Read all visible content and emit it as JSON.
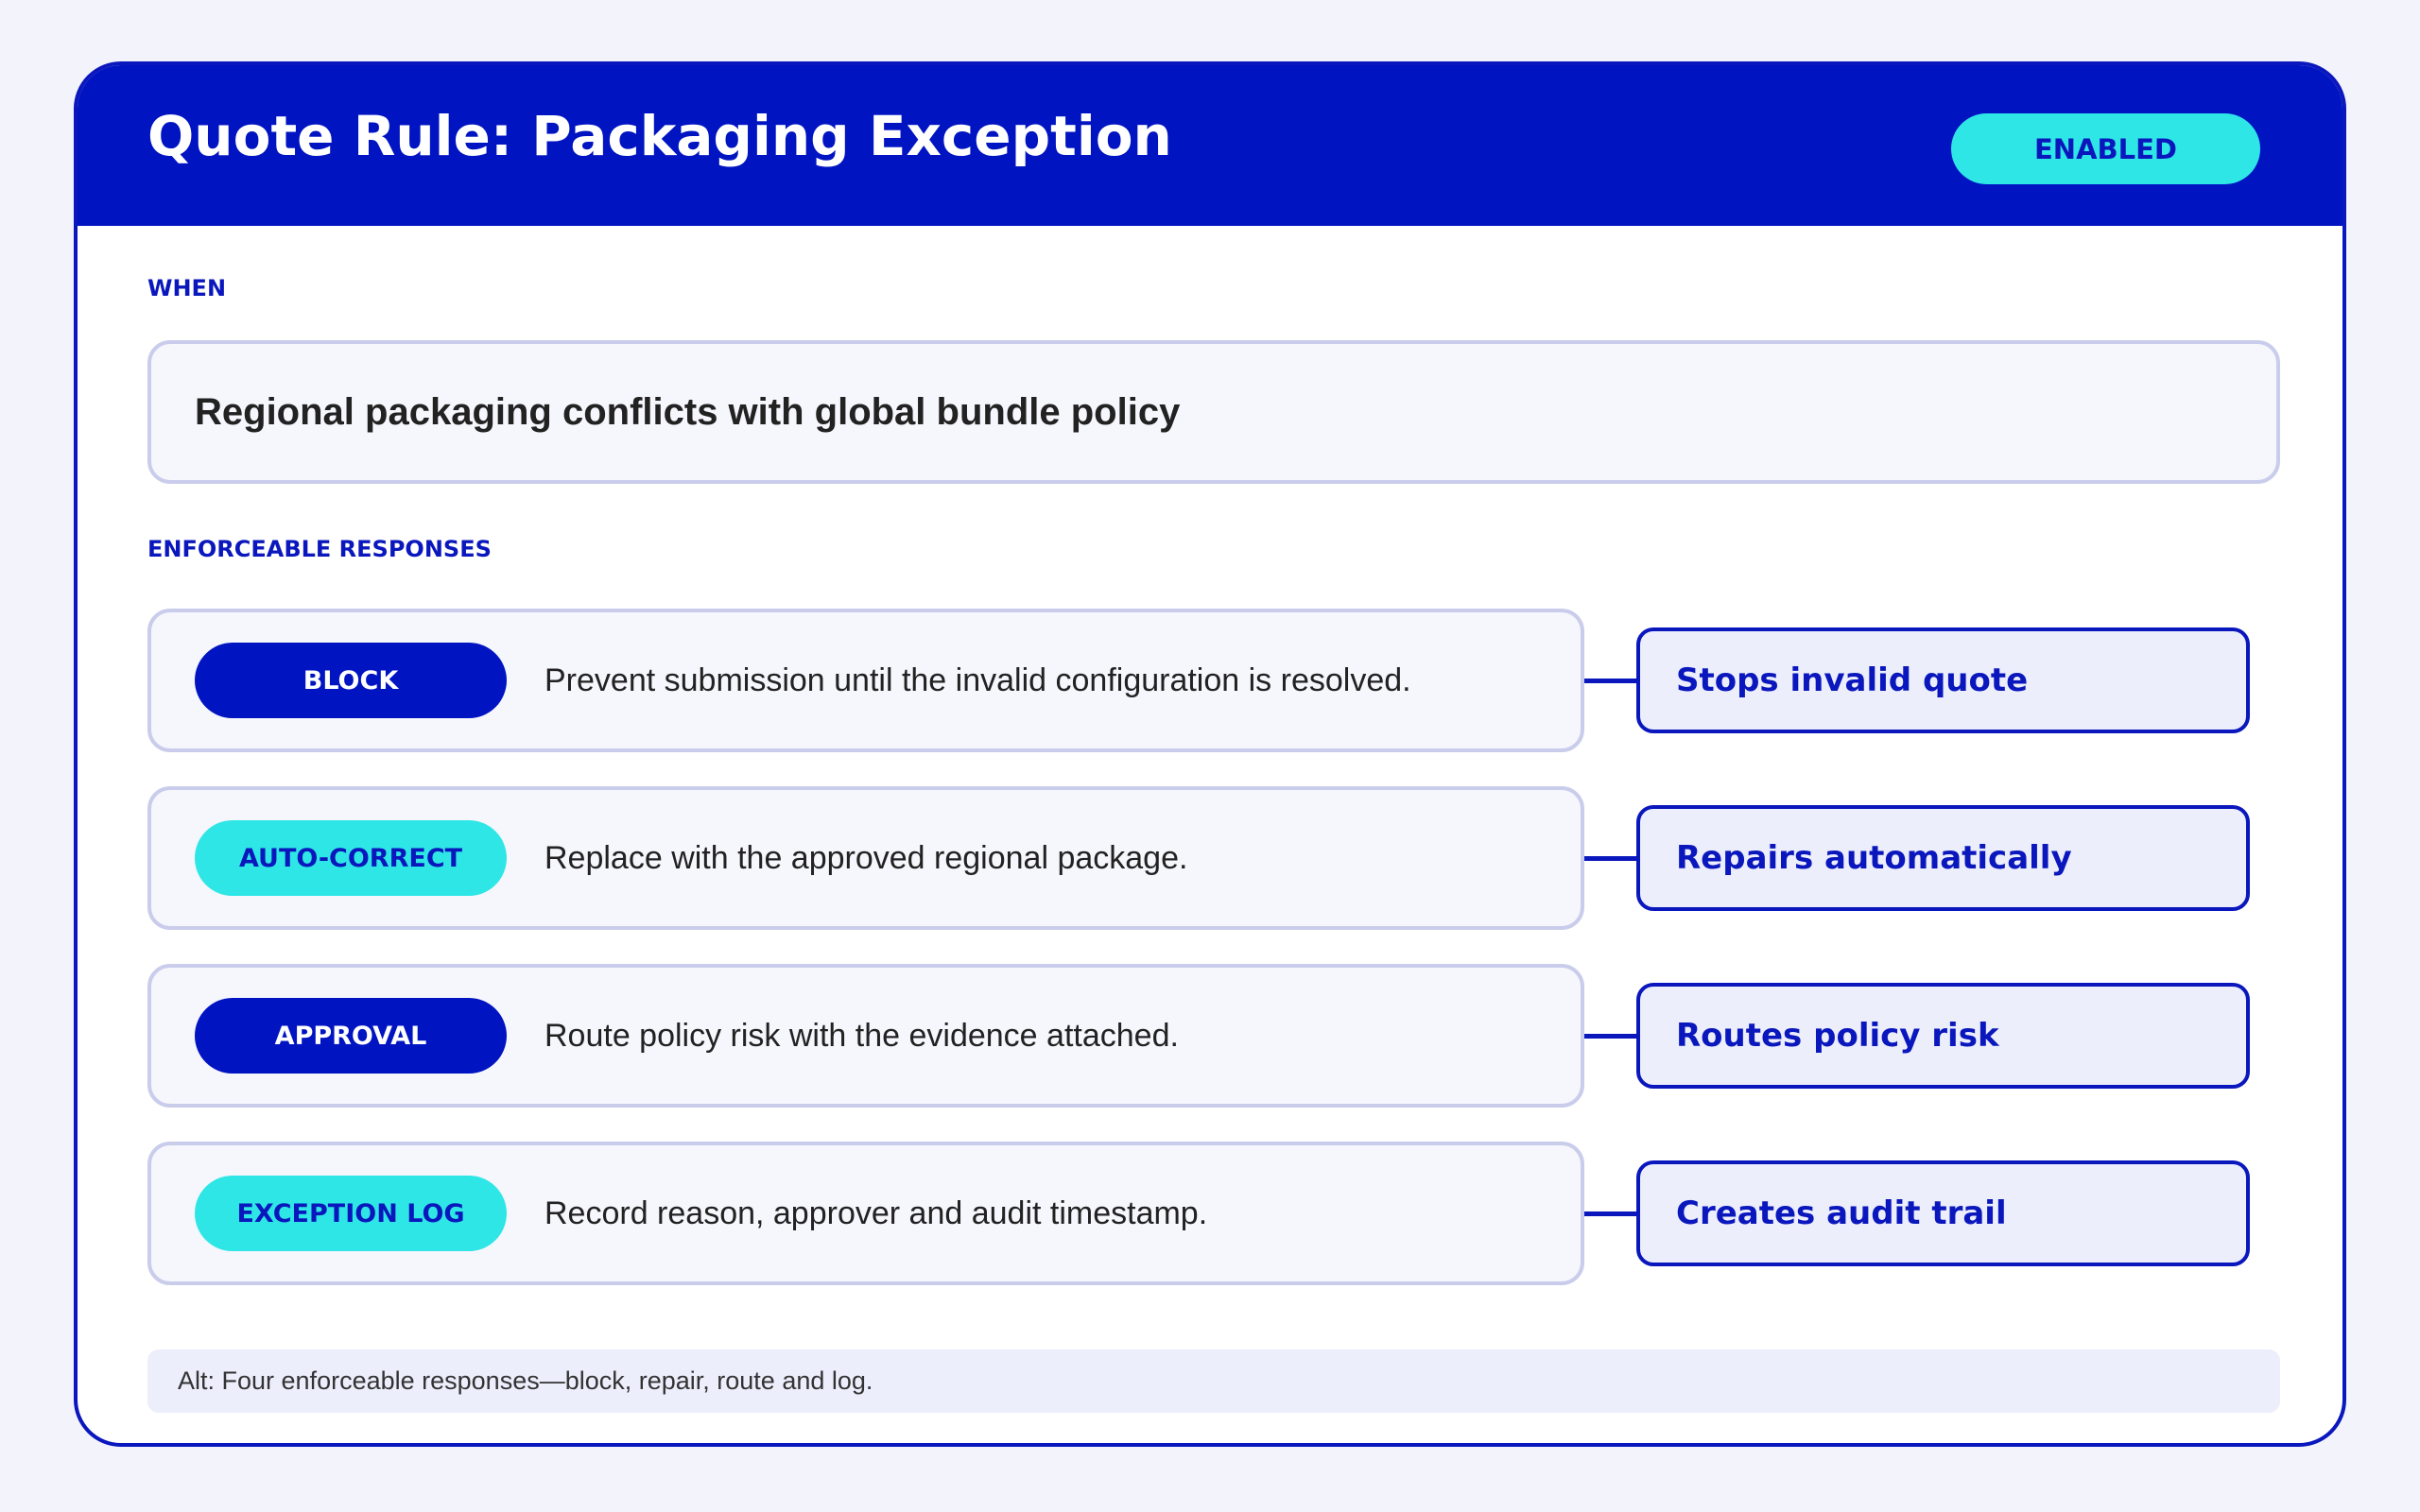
{
  "header": {
    "title": "Quote Rule: Packaging Exception",
    "status": "ENABLED"
  },
  "when": {
    "label": "WHEN",
    "condition": "Regional packaging conflicts with global bundle policy"
  },
  "responses": {
    "label": "ENFORCEABLE RESPONSES",
    "items": [
      {
        "action": "BLOCK",
        "description": "Prevent submission until the invalid configuration is resolved.",
        "outcome": "Stops invalid quote"
      },
      {
        "action": "AUTO-CORRECT",
        "description": "Replace with the approved regional package.",
        "outcome": "Repairs automatically"
      },
      {
        "action": "APPROVAL",
        "description": "Route policy risk with the evidence attached.",
        "outcome": "Routes policy risk"
      },
      {
        "action": "EXCEPTION LOG",
        "description": "Record reason, approver and audit timestamp.",
        "outcome": "Creates audit trail"
      }
    ]
  },
  "alt_text": "Alt: Four enforceable responses—block, repair, route and log."
}
